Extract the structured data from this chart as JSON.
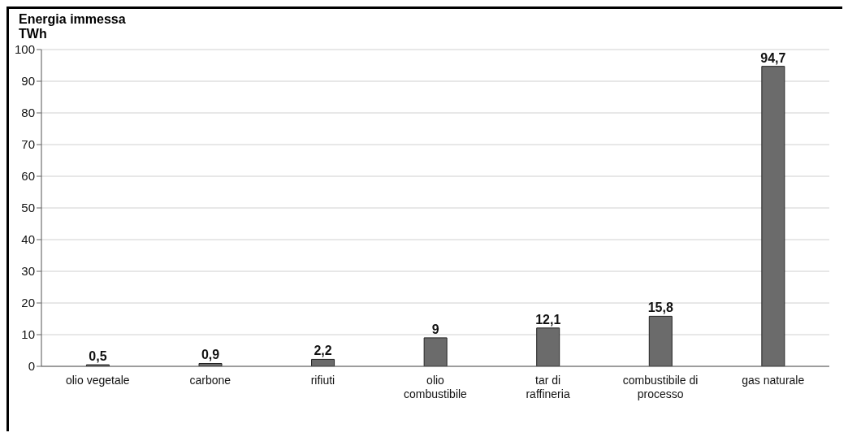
{
  "chart_data": {
    "type": "bar",
    "title": "Energia immessa",
    "ylabel": "TWh",
    "categories": [
      "olio vegetale",
      "carbone",
      "rifiuti",
      "olio combustibile",
      "tar di raffineria",
      "combustibile di processo",
      "gas naturale"
    ],
    "values": [
      0.5,
      0.9,
      2.2,
      9,
      12.1,
      15.8,
      94.7
    ],
    "value_labels": [
      "0,5",
      "0,9",
      "2,2",
      "9",
      "12,1",
      "15,8",
      "94,7"
    ],
    "color": "#6b6b6b",
    "ylim": [
      0,
      100
    ],
    "yticks": [
      0,
      10,
      20,
      30,
      40,
      50,
      60,
      70,
      80,
      90,
      100
    ],
    "grid": "y"
  }
}
